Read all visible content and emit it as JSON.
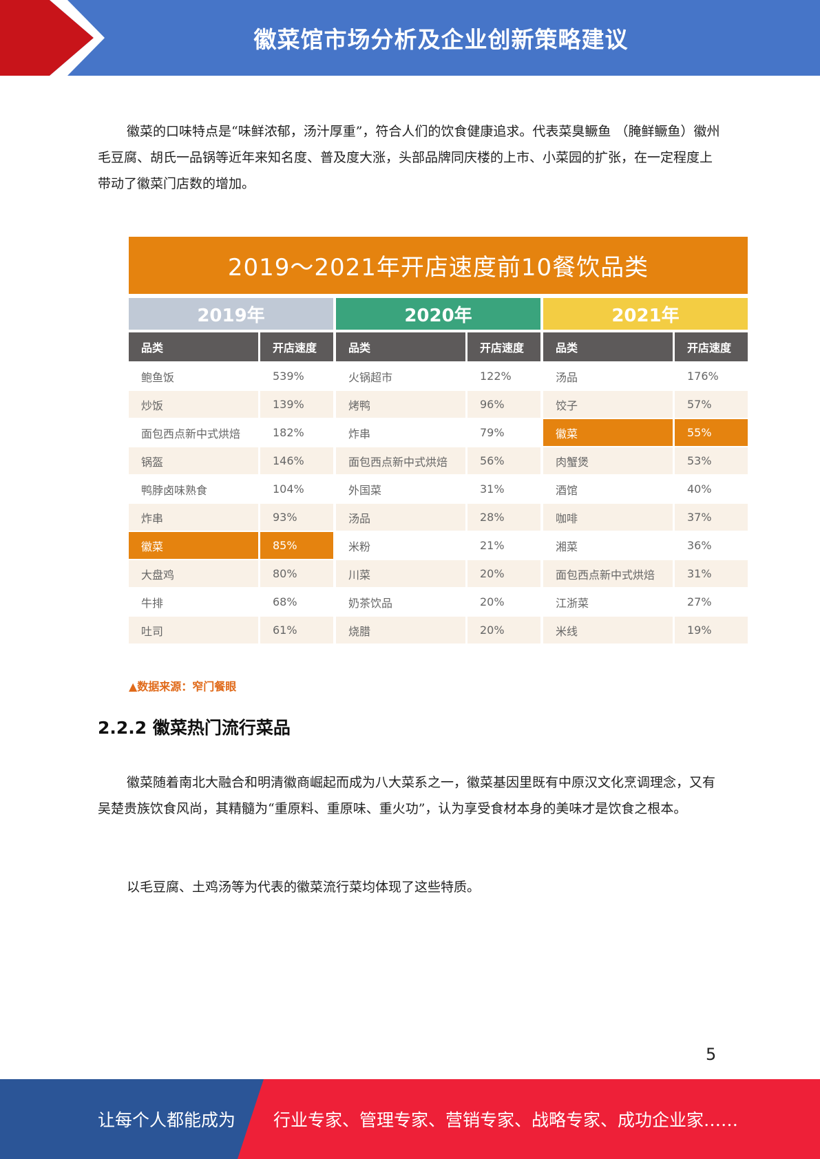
{
  "header": {
    "title": "徽菜馆市场分析及企业创新策略建议"
  },
  "intro_paragraph": "徽菜的口味特点是“味鲜浓郁，汤汁厚重”，符合人们的饮食健康追求。代表菜臭鳜鱼 （腌鲜鳜鱼）徽州毛豆腐、胡氏一品锅等近年来知名度、普及度大涨，头部品牌同庆楼的上市、小菜园的扩张，在一定程度上带动了徽菜门店数的增加。",
  "table": {
    "title": "2019～2021年开店速度前10餐饮品类",
    "col_name_header": "品类",
    "col_value_header": "开店速度",
    "years": [
      {
        "label": "2019年",
        "rows": [
          {
            "name": "鲍鱼饭",
            "value": "539%"
          },
          {
            "name": "炒饭",
            "value": "139%"
          },
          {
            "name": "面包西点新中式烘焙",
            "value": "182%"
          },
          {
            "name": "锅盔",
            "value": "146%"
          },
          {
            "name": "鸭脖卤味熟食",
            "value": "104%"
          },
          {
            "name": "炸串",
            "value": "93%"
          },
          {
            "name": "徽菜",
            "value": "85%"
          },
          {
            "name": "大盘鸡",
            "value": "80%"
          },
          {
            "name": "牛排",
            "value": "68%"
          },
          {
            "name": "吐司",
            "value": "61%"
          }
        ]
      },
      {
        "label": "2020年",
        "rows": [
          {
            "name": "火锅超市",
            "value": "122%"
          },
          {
            "name": "烤鸭",
            "value": "96%"
          },
          {
            "name": "炸串",
            "value": "79%"
          },
          {
            "name": "面包西点新中式烘焙",
            "value": "56%"
          },
          {
            "name": "外国菜",
            "value": "31%"
          },
          {
            "name": "汤品",
            "value": "28%"
          },
          {
            "name": "米粉",
            "value": "21%"
          },
          {
            "name": "川菜",
            "value": "20%"
          },
          {
            "name": "奶茶饮品",
            "value": "20%"
          },
          {
            "name": "烧腊",
            "value": "20%"
          }
        ]
      },
      {
        "label": "2021年",
        "rows": [
          {
            "name": "汤品",
            "value": "176%"
          },
          {
            "name": "饺子",
            "value": "57%"
          },
          {
            "name": "徽菜",
            "value": "55%"
          },
          {
            "name": "肉蟹煲",
            "value": "53%"
          },
          {
            "name": "酒馆",
            "value": "40%"
          },
          {
            "name": "咖啡",
            "value": "37%"
          },
          {
            "name": "湘菜",
            "value": "36%"
          },
          {
            "name": "面包西点新中式烘焙",
            "value": "31%"
          },
          {
            "name": "江浙菜",
            "value": "27%"
          },
          {
            "name": "米线",
            "value": "19%"
          }
        ]
      }
    ],
    "colors": {
      "title_bg": "#e5830f",
      "y2019": "#c0c9d6",
      "y2020": "#3aa47d",
      "y2021": "#f3cd43",
      "header_bg": "#5d5a5a",
      "highlight": "#e5830f",
      "alt_row": "#f9f1e7"
    }
  },
  "source_note": "▲数据来源：窄门餐眼",
  "section_heading": "2.2.2 徽菜热门流行菜品",
  "paragraph_2": "徽菜随着南北大融合和明清徽商崛起而成为八大菜系之一，徽菜基因里既有中原汉文化烹调理念，又有吴楚贵族饮食风尚，其精髓为“重原料、重原味、重火功”，认为享受食材本身的美味才是饮食之根本。",
  "paragraph_3": "以毛豆腐、土鸡汤等为代表的徽菜流行菜均体现了这些特质。",
  "page_number": "5",
  "footer": {
    "left_text": "让每个人都能成为",
    "right_text": "行业专家、管理专家、营销专家、战略专家、成功企业家……",
    "left_color": "#2b5597",
    "right_color": "#ee2038"
  },
  "brand_colors": {
    "header_blue": "#4675c8",
    "header_red": "#c8141a"
  }
}
